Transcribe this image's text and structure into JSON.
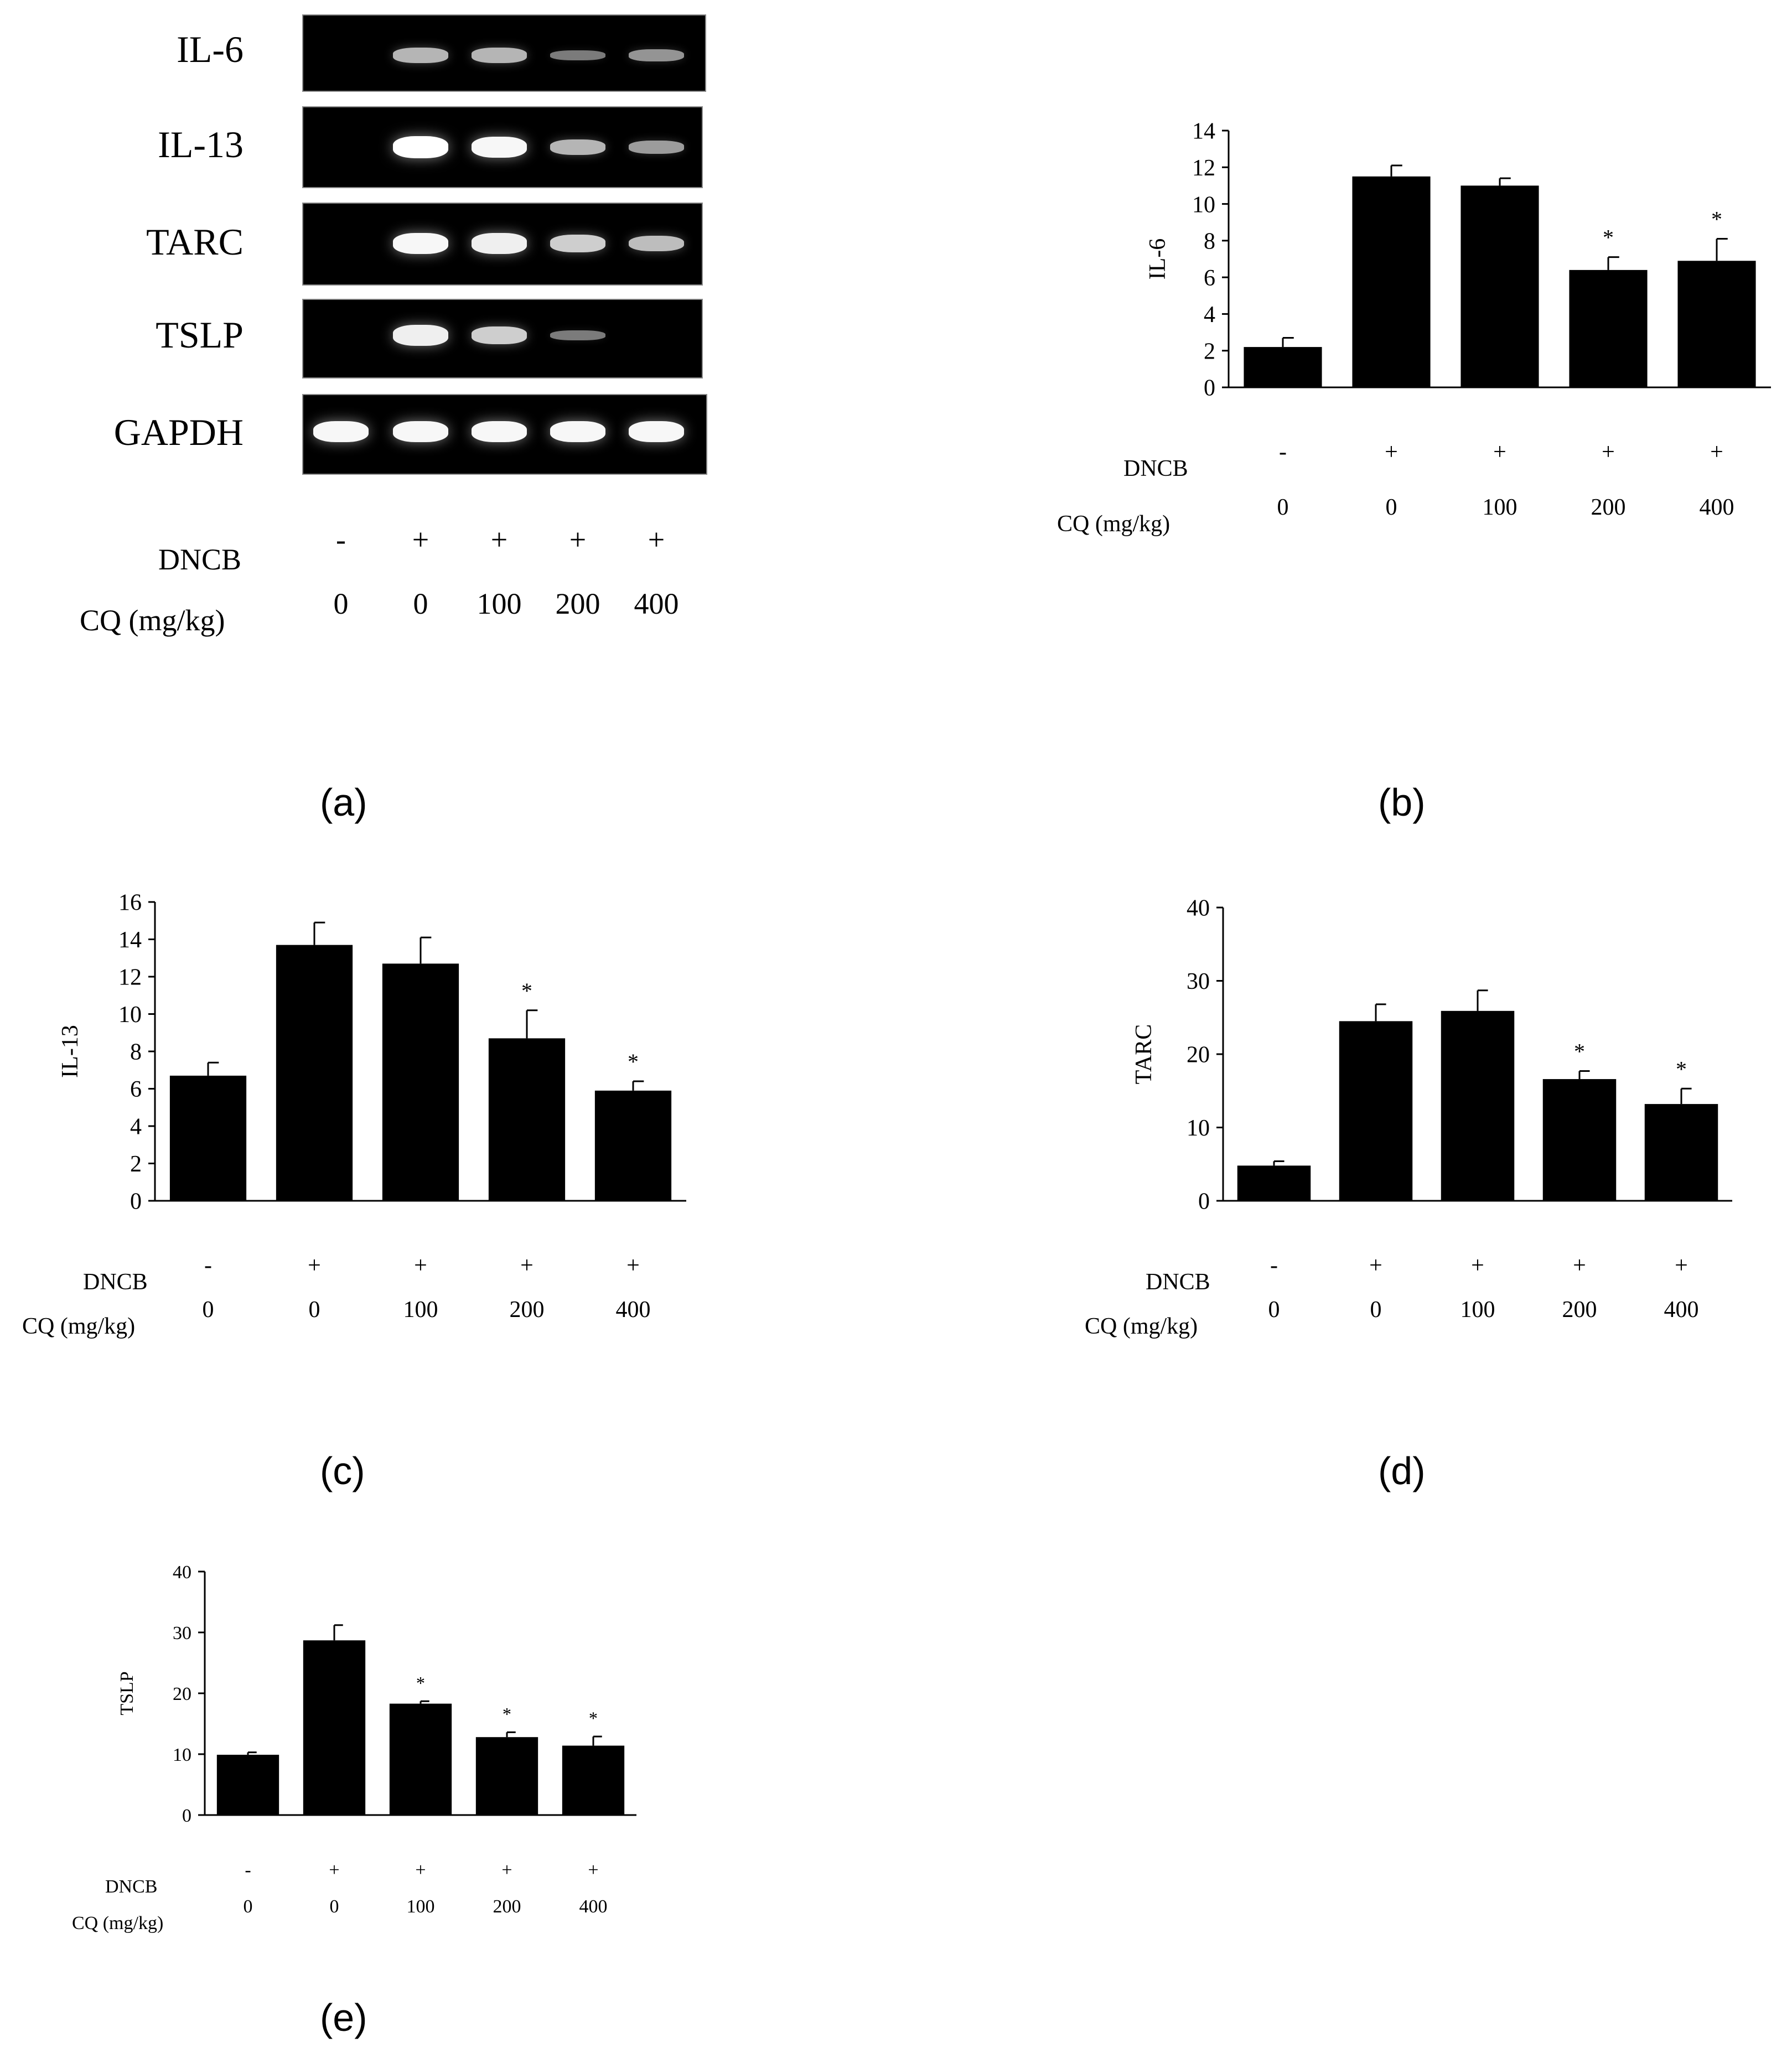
{
  "gel": {
    "rows": [
      {
        "label": "IL-6",
        "intensities": [
          0,
          0.55,
          0.55,
          0.2,
          0.35
        ]
      },
      {
        "label": "IL-13",
        "intensities": [
          0,
          1.0,
          0.95,
          0.55,
          0.4
        ]
      },
      {
        "label": "TARC",
        "intensities": [
          0,
          0.95,
          0.9,
          0.7,
          0.6
        ]
      },
      {
        "label": "TSLP",
        "intensities": [
          0,
          0.9,
          0.7,
          0.2,
          0
        ]
      },
      {
        "label": "GAPDH",
        "intensities": [
          0.95,
          0.95,
          0.95,
          0.95,
          0.95
        ]
      }
    ],
    "dncb_label": "DNCB",
    "cq_label": "CQ (mg/kg)",
    "dncb_values": [
      "-",
      "+",
      "+",
      "+",
      "+"
    ],
    "cq_values": [
      "0",
      "0",
      "100",
      "200",
      "400"
    ]
  },
  "panel_labels": [
    "(a)",
    "(b)",
    "(c)",
    "(d)",
    "(e)"
  ],
  "chart_data": [
    {
      "type": "bar",
      "panel": "b",
      "ylabel": "IL-6",
      "categories": [
        "-/0",
        "+/0",
        "+/100",
        "+/200",
        "+/400"
      ],
      "dncb": [
        "-",
        "+",
        "+",
        "+",
        "+"
      ],
      "cq": [
        "0",
        "0",
        "100",
        "200",
        "400"
      ],
      "values": [
        2.2,
        11.5,
        11.0,
        6.4,
        6.9
      ],
      "errors": [
        0.5,
        0.6,
        0.4,
        0.7,
        1.2
      ],
      "significant": [
        false,
        false,
        false,
        true,
        true
      ],
      "ylim": [
        0,
        14
      ],
      "yticks": [
        0,
        2,
        4,
        6,
        8,
        10,
        12,
        14
      ],
      "color": "#000000"
    },
    {
      "type": "bar",
      "panel": "c",
      "ylabel": "IL-13",
      "categories": [
        "-/0",
        "+/0",
        "+/100",
        "+/200",
        "+/400"
      ],
      "dncb": [
        "-",
        "+",
        "+",
        "+",
        "+"
      ],
      "cq": [
        "0",
        "0",
        "100",
        "200",
        "400"
      ],
      "values": [
        6.7,
        13.7,
        12.7,
        8.7,
        5.9
      ],
      "errors": [
        0.7,
        1.2,
        1.4,
        1.5,
        0.5
      ],
      "significant": [
        false,
        false,
        false,
        true,
        true
      ],
      "ylim": [
        0,
        16
      ],
      "yticks": [
        0,
        2,
        4,
        6,
        8,
        10,
        12,
        14,
        16
      ],
      "color": "#000000"
    },
    {
      "type": "bar",
      "panel": "d",
      "ylabel": "TARC",
      "categories": [
        "-/0",
        "+/0",
        "+/100",
        "+/200",
        "+/400"
      ],
      "dncb": [
        "-",
        "+",
        "+",
        "+",
        "+"
      ],
      "cq": [
        "0",
        "0",
        "100",
        "200",
        "400"
      ],
      "values": [
        4.8,
        24.5,
        25.9,
        16.6,
        13.2
      ],
      "errors": [
        0.6,
        2.3,
        2.8,
        1.1,
        2.1
      ],
      "significant": [
        false,
        false,
        false,
        true,
        true
      ],
      "ylim": [
        0,
        40
      ],
      "yticks": [
        0,
        10,
        20,
        30,
        40
      ],
      "color": "#000000"
    },
    {
      "type": "bar",
      "panel": "e",
      "ylabel": "TSLP",
      "categories": [
        "-/0",
        "+/0",
        "+/100",
        "+/200",
        "+/400"
      ],
      "dncb": [
        "-",
        "+",
        "+",
        "+",
        "+"
      ],
      "cq": [
        "0",
        "0",
        "100",
        "200",
        "400"
      ],
      "values": [
        9.9,
        28.7,
        18.3,
        12.8,
        11.4
      ],
      "errors": [
        0.4,
        2.5,
        0.4,
        0.8,
        1.5
      ],
      "significant": [
        false,
        false,
        true,
        true,
        true
      ],
      "ylim": [
        0,
        40
      ],
      "yticks": [
        0,
        10,
        20,
        30,
        40
      ],
      "color": "#000000"
    }
  ]
}
